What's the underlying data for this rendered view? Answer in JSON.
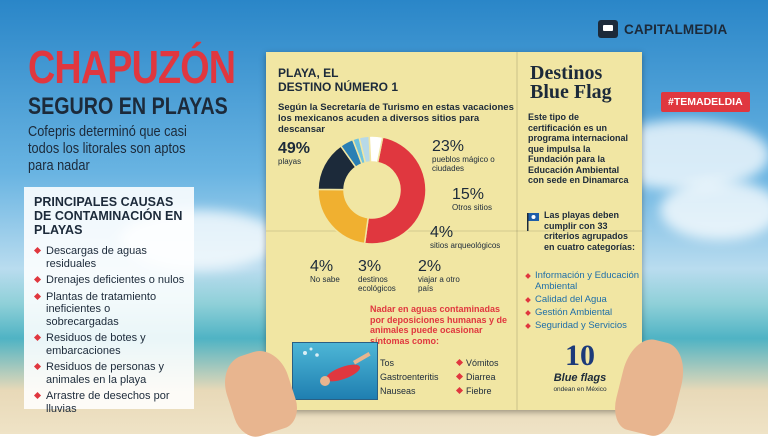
{
  "brand": {
    "name": "CAPITALMEDIA",
    "icon": "chat-bubble-icon"
  },
  "header": {
    "title": "CHAPUZÓN",
    "subtitle": "SEGURO EN PLAYAS",
    "intro": "Cofepris determinó que casi todos los litorales son aptos para nadar"
  },
  "causes": {
    "heading": "PRINCIPALES CAUSAS DE CONTAMINACIÓN EN PLAYAS",
    "items": [
      "Descargas de aguas residuales",
      "Drenajes deficientes o nulos",
      "Plantas de tratamiento ineficientes o sobrecargadas",
      "Residuos de botes y embarcaciones",
      "Residuos de personas y animales en la playa",
      "Arrastre de desechos por lluvias"
    ]
  },
  "paper": {
    "title_line1": "PLAYA, EL",
    "title_line2": "DESTINO NÚMERO 1",
    "lead": "Según la Secretaría de Turismo en estas vacaciones los mexicanos acuden a diversos sitios para descansar",
    "warning": "Nadar en aguas contaminadas por deposiciones humanas y de animales puede ocasionar síntomas como:",
    "symptoms": [
      "Tos",
      "Gastroenteritis",
      "Nauseas",
      "Vómitos",
      "Diarrea",
      "Fiebre"
    ]
  },
  "chart_data": {
    "type": "pie",
    "title": "PLAYA, EL DESTINO NÚMERO 1",
    "slices": [
      {
        "label": "playas",
        "value": 49,
        "display": "49%",
        "color": "#e0373f"
      },
      {
        "label": "pueblos mágico o ciudades",
        "value": 23,
        "display": "23%",
        "color": "#f0b030"
      },
      {
        "label": "Otros sitios",
        "value": 15,
        "display": "15%",
        "color": "#1c2a3a"
      },
      {
        "label": "sitios arqueológicos",
        "value": 4,
        "display": "4%",
        "color": "#2a7fb4"
      },
      {
        "label": "viajar a otro país",
        "value": 2,
        "display": "2%",
        "color": "#6fc3dd"
      },
      {
        "label": "destinos ecológicos",
        "value": 3,
        "display": "3%",
        "color": "#b7d9e8"
      },
      {
        "label": "No sabe",
        "value": 4,
        "display": "4%",
        "color": "#ffffff"
      }
    ]
  },
  "sidebar": {
    "title_line1": "Destinos",
    "title_line2": "Blue Flag",
    "desc": "Este tipo de certificación es un programa internacional que impulsa la Fundación para la Educación Ambiental con sede en Dinamarca",
    "criteria_intro": "Las playas deben cumplir con 33 criterios agrupados en cuatro categorías:",
    "criteria": [
      "Información y Educación Ambiental",
      "Calidad del Agua",
      "Gestión Ambiental",
      "Seguridad y Servicios"
    ],
    "count": "10",
    "count_label": "Blue flags",
    "count_sub": "ondean en México",
    "flag_icon": "blue-flag-icon"
  },
  "hashtag": "#TEMADELDIA"
}
